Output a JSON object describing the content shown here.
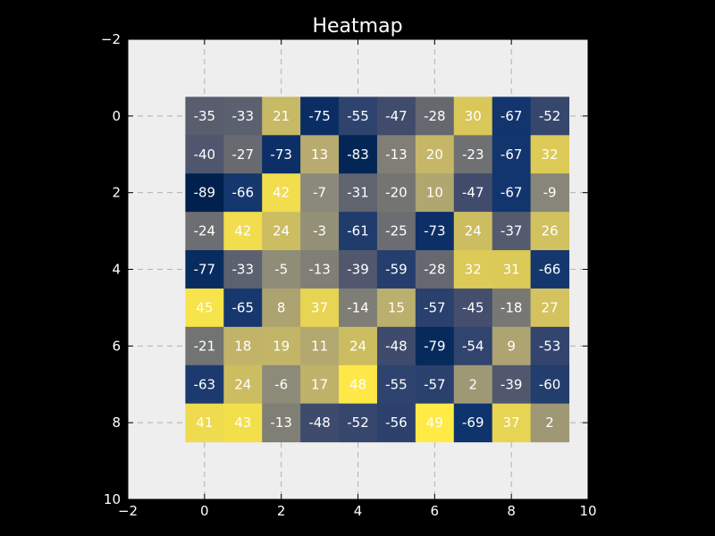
{
  "chart_data": {
    "type": "heatmap",
    "title": "Heatmap",
    "xlabel": "",
    "ylabel": "",
    "xlim": [
      -2,
      10
    ],
    "ylim": [
      10,
      -2
    ],
    "xticks": [
      "−2",
      "0",
      "2",
      "4",
      "6",
      "8",
      "10"
    ],
    "yticks": [
      "−2",
      "0",
      "2",
      "4",
      "6",
      "8",
      "10"
    ],
    "grid": true,
    "colormap": "cividis",
    "vmin": -89,
    "vmax": 49,
    "values": [
      [
        -35,
        -33,
        21,
        -75,
        -55,
        -47,
        -28,
        30,
        -67,
        -52
      ],
      [
        -40,
        -27,
        -73,
        13,
        -83,
        -13,
        20,
        -23,
        -67,
        32
      ],
      [
        -89,
        -66,
        42,
        -7,
        -31,
        -20,
        10,
        -47,
        -67,
        -9
      ],
      [
        -24,
        42,
        24,
        -3,
        -61,
        -25,
        -73,
        24,
        -37,
        26
      ],
      [
        -77,
        -33,
        -5,
        -13,
        -39,
        -59,
        -28,
        32,
        31,
        -66
      ],
      [
        45,
        -65,
        8,
        37,
        -14,
        15,
        -57,
        -45,
        -18,
        27
      ],
      [
        -21,
        18,
        19,
        11,
        24,
        -48,
        -79,
        -54,
        9,
        -53
      ],
      [
        -63,
        24,
        -6,
        17,
        48,
        -55,
        -57,
        2,
        -39,
        -60
      ],
      [
        41,
        43,
        -13,
        -48,
        -52,
        -56,
        49,
        -69,
        37,
        2
      ]
    ]
  },
  "colors": {
    "background": "#000000",
    "plot_area": "#eeeeee",
    "grid": "#b0b0b0",
    "text": "#ffffff"
  }
}
